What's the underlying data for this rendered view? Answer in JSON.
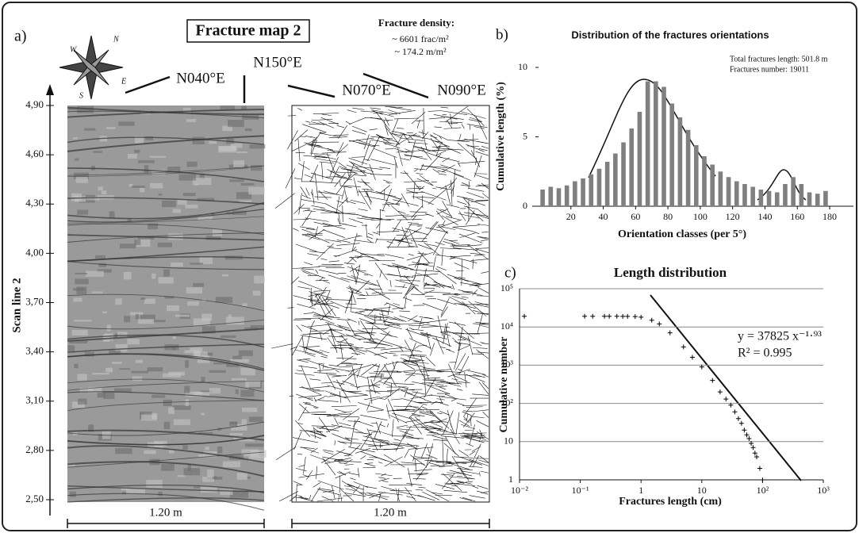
{
  "panel_a": {
    "label": "a)",
    "title": "Fracture map 2",
    "density_title": "Fracture density:",
    "density_lines": [
      "~ 6601 frac/m²",
      "~ 174.2 m/m²"
    ],
    "orientations": [
      "N040°E",
      "N150°E",
      "N070°E",
      "N090°E"
    ],
    "compass": [
      "N",
      "E",
      "S",
      "W"
    ],
    "y_label": "Scan line 2",
    "ylim": [
      2.5,
      4.9
    ],
    "yticks": [
      {
        "value": 4.9,
        "label": "4,90"
      },
      {
        "value": 4.6,
        "label": "4,60"
      },
      {
        "value": 4.3,
        "label": "4,30"
      },
      {
        "value": 4.0,
        "label": "4,00"
      },
      {
        "value": 3.7,
        "label": "3,70"
      },
      {
        "value": 3.4,
        "label": "3,40"
      },
      {
        "value": 3.1,
        "label": "3,10"
      },
      {
        "value": 2.8,
        "label": "2,80"
      },
      {
        "value": 2.5,
        "label": "2,50"
      }
    ],
    "scale_labels": [
      "1.20 m",
      "1.20 m"
    ]
  },
  "chart_data": [
    {
      "type": "bar",
      "label": "b)",
      "title": "Distribution of the fractures orientations",
      "x_label": "Orientation classes (per 5°)",
      "y_label": "Cumulative length (%)",
      "annotations": [
        "Total fractures length: 501.8 m",
        "Fractures number: 19011"
      ],
      "color": "#808080",
      "x": [
        2.5,
        7.5,
        12.5,
        17.5,
        22.5,
        27.5,
        32.5,
        37.5,
        42.5,
        47.5,
        52.5,
        57.5,
        62.5,
        67.5,
        72.5,
        77.5,
        82.5,
        87.5,
        92.5,
        97.5,
        102.5,
        107.5,
        112.5,
        117.5,
        122.5,
        127.5,
        132.5,
        137.5,
        142.5,
        147.5,
        152.5,
        157.5,
        162.5,
        167.5,
        172.5,
        177.5
      ],
      "values": [
        1.2,
        1.4,
        1.3,
        1.5,
        1.8,
        2.0,
        2.3,
        2.7,
        3.2,
        3.8,
        4.6,
        5.6,
        6.8,
        9.0,
        9.0,
        8.6,
        7.4,
        6.4,
        5.5,
        4.4,
        3.6,
        3.0,
        2.5,
        2.1,
        1.8,
        1.6,
        1.4,
        1.2,
        1.1,
        1.0,
        1.6,
        2.1,
        1.6,
        1.0,
        0.9,
        1.1
      ],
      "xlim": [
        0,
        180
      ],
      "xticks": [
        20,
        40,
        60,
        80,
        100,
        120,
        140,
        160,
        180
      ],
      "ylim": [
        0,
        10
      ],
      "yticks": [
        0,
        5,
        10
      ]
    },
    {
      "type": "scatter",
      "label": "c)",
      "title": "Length distribution",
      "x_label": "Fractures length (cm)",
      "y_label": "Cumulative number",
      "annotations": [
        "y = 37825 x⁻¹·⁹³",
        "R² = 0.995"
      ],
      "log_x": true,
      "log_y": true,
      "grid": true,
      "color": "#000000",
      "x": [
        0.012,
        0.118,
        0.16,
        0.25,
        0.3,
        0.4,
        0.5,
        0.6,
        0.8,
        1,
        1.5,
        2,
        3,
        5,
        7,
        10,
        15,
        20,
        25,
        30,
        35,
        40,
        45,
        50,
        55,
        60,
        65,
        70,
        75,
        80,
        90,
        100
      ],
      "values": [
        19011,
        19000,
        19000,
        19000,
        19000,
        19000,
        18950,
        18900,
        18700,
        18000,
        15000,
        12000,
        7000,
        3000,
        1600,
        900,
        400,
        200,
        130,
        90,
        60,
        40,
        30,
        20,
        15,
        12,
        9,
        7,
        5,
        4,
        2,
        1
      ],
      "xlim": [
        0.01,
        1000
      ],
      "xticks": [
        {
          "value": 0.01,
          "label": "10⁻²"
        },
        {
          "value": 0.1,
          "label": "10⁻¹"
        },
        1,
        10,
        {
          "value": 100,
          "label": "10²"
        },
        {
          "value": 1000,
          "label": "10³"
        }
      ],
      "ylim": [
        1,
        100000
      ],
      "yticks": [
        1,
        10,
        {
          "value": 100,
          "label": "10²"
        },
        {
          "value": 1000,
          "label": "10³"
        },
        {
          "value": 10000,
          "label": "10⁴"
        },
        {
          "value": 100000,
          "label": "10⁵"
        }
      ]
    }
  ]
}
